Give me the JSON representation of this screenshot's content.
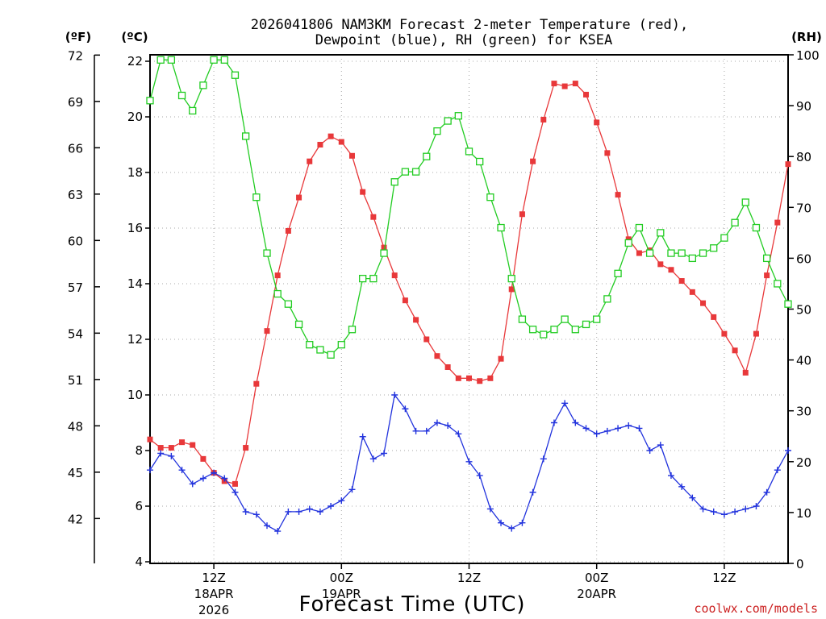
{
  "chart_data": {
    "type": "line",
    "title_line1": "2026041806 NAM3KM Forecast 2-meter Temperature (red),",
    "title_line2": "Dewpoint (blue), RH (green) for KSEA",
    "xlabel": "Forecast Time (UTC)",
    "credit": "coolwx.com/models",
    "units": {
      "fahrenheit": "(ºF)",
      "celsius": "(ºC)",
      "rh": "(RH)"
    },
    "x_hours_range": [
      6,
      66
    ],
    "celsius_range": [
      4,
      22.5
    ],
    "rh_range": [
      0,
      100
    ],
    "celsius_ticks": [
      "4",
      "6",
      "8",
      "10",
      "12",
      "14",
      "16",
      "18",
      "20",
      "22"
    ],
    "fahrenheit_ticks": [
      "42",
      "45",
      "48",
      "51",
      "54",
      "57",
      "60",
      "63",
      "66",
      "69",
      "72"
    ],
    "rh_ticks": [
      "0",
      "10",
      "20",
      "30",
      "40",
      "50",
      "60",
      "70",
      "80",
      "90",
      "100"
    ],
    "x_ticks": [
      {
        "hour": 12,
        "label": "12Z",
        "sub1": "18APR",
        "sub2": "2026"
      },
      {
        "hour": 24,
        "label": "00Z",
        "sub1": "19APR",
        "sub2": ""
      },
      {
        "hour": 36,
        "label": "12Z",
        "sub1": "",
        "sub2": ""
      },
      {
        "hour": 48,
        "label": "00Z",
        "sub1": "20APR",
        "sub2": ""
      },
      {
        "hour": 60,
        "label": "12Z",
        "sub1": "",
        "sub2": ""
      }
    ],
    "series": [
      {
        "name": "Temperature",
        "color": "#e8383a",
        "marker": "filled-square",
        "axis": "celsius",
        "values": [
          8.4,
          8.1,
          8.1,
          8.3,
          8.2,
          7.7,
          7.2,
          6.9,
          6.8,
          8.1,
          10.4,
          12.3,
          14.3,
          15.9,
          17.1,
          18.4,
          19.0,
          19.3,
          19.1,
          18.6,
          17.3,
          16.4,
          15.3,
          14.3,
          13.4,
          12.7,
          12.0,
          11.4,
          11.0,
          10.6,
          10.6,
          10.5,
          10.6,
          11.3,
          13.8,
          16.5,
          18.4,
          19.9,
          21.2,
          21.1,
          21.2,
          20.8,
          19.8,
          18.7,
          17.2,
          15.6,
          15.1,
          15.2,
          14.7,
          14.5,
          14.1,
          13.7,
          13.3,
          12.8,
          12.2,
          11.6,
          10.8,
          12.2,
          14.3,
          16.2,
          18.3
        ]
      },
      {
        "name": "Dewpoint",
        "color": "#2233dd",
        "marker": "plus",
        "axis": "celsius",
        "values": [
          7.3,
          7.9,
          7.8,
          7.3,
          6.8,
          7.0,
          7.2,
          7.0,
          6.5,
          5.8,
          5.7,
          5.3,
          5.1,
          5.8,
          5.8,
          5.9,
          5.8,
          6.0,
          6.2,
          6.6,
          8.5,
          7.7,
          7.9,
          10.0,
          9.5,
          8.7,
          8.7,
          9.0,
          8.9,
          8.6,
          7.6,
          7.1,
          5.9,
          5.4,
          5.2,
          5.4,
          6.5,
          7.7,
          9.0,
          9.7,
          9.0,
          8.8,
          8.6,
          8.7,
          8.8,
          8.9,
          8.8,
          8.0,
          8.2,
          7.1,
          6.7,
          6.3,
          5.9,
          5.8,
          5.7,
          5.8,
          5.9,
          6.0,
          6.5,
          7.3,
          8.0
        ]
      },
      {
        "name": "RH",
        "color": "#22cc22",
        "marker": "open-square",
        "axis": "rh",
        "values": [
          91,
          99,
          99,
          92,
          89,
          94,
          99,
          99,
          96,
          84,
          72,
          61,
          53,
          51,
          47,
          43,
          42,
          41,
          43,
          46,
          56,
          56,
          61,
          75,
          77,
          77,
          80,
          85,
          87,
          88,
          81,
          79,
          72,
          66,
          56,
          48,
          46,
          45,
          46,
          48,
          46,
          47,
          48,
          52,
          57,
          63,
          66,
          61,
          65,
          61,
          61,
          60,
          61,
          62,
          64,
          67,
          71,
          66,
          60,
          55,
          51
        ]
      }
    ]
  }
}
